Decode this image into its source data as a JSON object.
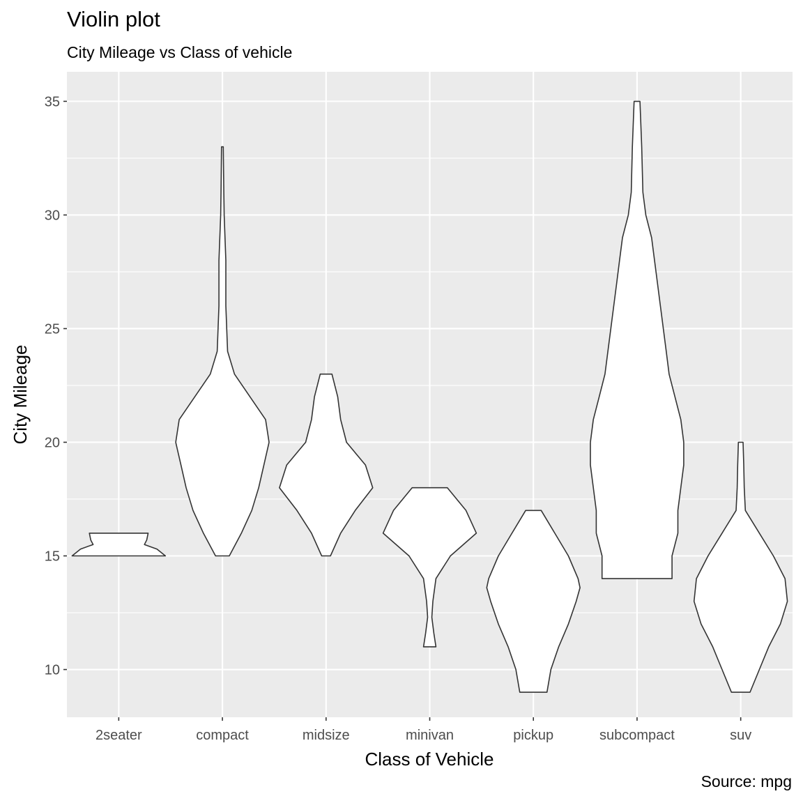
{
  "chart_data": {
    "type": "violin",
    "title": "Violin plot",
    "subtitle": "City Mileage vs Class of vehicle",
    "caption": "Source: mpg",
    "xlabel": "Class of Vehicle",
    "ylabel": "City Mileage",
    "ylim": [
      7.9,
      36.3
    ],
    "y_ticks": [
      10,
      15,
      20,
      25,
      30,
      35
    ],
    "y_minor_ticks": [
      12.5,
      17.5,
      22.5,
      27.5,
      32.5
    ],
    "grid": true,
    "categories": [
      "2seater",
      "compact",
      "midsize",
      "minivan",
      "pickup",
      "subcompact",
      "suv"
    ],
    "violins": [
      {
        "category": "2seater",
        "min": 15,
        "max": 16,
        "density": [
          [
            15,
            1.0
          ],
          [
            15.3,
            0.82
          ],
          [
            15.5,
            0.55
          ],
          [
            15.7,
            0.6
          ],
          [
            16,
            0.63
          ]
        ]
      },
      {
        "category": "compact",
        "min": 15,
        "max": 33,
        "density": [
          [
            15,
            0.04
          ],
          [
            16,
            0.11
          ],
          [
            17,
            0.17
          ],
          [
            18,
            0.21
          ],
          [
            19,
            0.24
          ],
          [
            20,
            0.27
          ],
          [
            21,
            0.25
          ],
          [
            22,
            0.16
          ],
          [
            23,
            0.07
          ],
          [
            24,
            0.03
          ],
          [
            26,
            0.02
          ],
          [
            28,
            0.02
          ],
          [
            30,
            0.01
          ],
          [
            31,
            0.008
          ],
          [
            33,
            0.005
          ]
        ]
      },
      {
        "category": "midsize",
        "min": 15,
        "max": 23,
        "density": [
          [
            15,
            0.03
          ],
          [
            16,
            0.1
          ],
          [
            17,
            0.2
          ],
          [
            18,
            0.32
          ],
          [
            19,
            0.27
          ],
          [
            20,
            0.14
          ],
          [
            21,
            0.1
          ],
          [
            22,
            0.08
          ],
          [
            23,
            0.04
          ]
        ]
      },
      {
        "category": "minivan",
        "min": 11,
        "max": 18,
        "density": [
          [
            11,
            0.06
          ],
          [
            11.6,
            0.04
          ],
          [
            12.3,
            0.02
          ],
          [
            13,
            0.03
          ],
          [
            14,
            0.06
          ],
          [
            15,
            0.2
          ],
          [
            16,
            0.45
          ],
          [
            17,
            0.35
          ],
          [
            18,
            0.17
          ]
        ]
      },
      {
        "category": "pickup",
        "min": 9,
        "max": 17,
        "density": [
          [
            9,
            0.07
          ],
          [
            10,
            0.09
          ],
          [
            11,
            0.13
          ],
          [
            12,
            0.18
          ],
          [
            13,
            0.22
          ],
          [
            13.6,
            0.24
          ],
          [
            14,
            0.23
          ],
          [
            15,
            0.18
          ],
          [
            16,
            0.11
          ],
          [
            17,
            0.04
          ]
        ]
      },
      {
        "category": "subcompact",
        "min": 14,
        "max": 35,
        "density": [
          [
            14,
            0.06
          ],
          [
            15,
            0.06
          ],
          [
            16,
            0.07
          ],
          [
            17,
            0.07
          ],
          [
            18,
            0.075
          ],
          [
            19,
            0.08
          ],
          [
            20,
            0.08
          ],
          [
            21,
            0.075
          ],
          [
            22,
            0.065
          ],
          [
            23,
            0.055
          ],
          [
            24,
            0.05
          ],
          [
            25,
            0.045
          ],
          [
            26,
            0.04
          ],
          [
            27,
            0.035
          ],
          [
            28,
            0.03
          ],
          [
            29,
            0.025
          ],
          [
            30,
            0.015
          ],
          [
            31,
            0.01
          ],
          [
            33,
            0.008
          ],
          [
            35,
            0.005
          ]
        ]
      },
      {
        "category": "suv",
        "min": 9,
        "max": 20,
        "density": [
          [
            9,
            0.04
          ],
          [
            10,
            0.08
          ],
          [
            11,
            0.12
          ],
          [
            12,
            0.17
          ],
          [
            13,
            0.2
          ],
          [
            14,
            0.19
          ],
          [
            15,
            0.14
          ],
          [
            16,
            0.08
          ],
          [
            17,
            0.02
          ],
          [
            18,
            0.015
          ],
          [
            19,
            0.013
          ],
          [
            20,
            0.01
          ]
        ]
      }
    ],
    "colors": {
      "panel": "#ebebeb",
      "grid": "#ffffff",
      "violin_fill": "#ffffff",
      "violin_stroke": "#333333"
    }
  }
}
